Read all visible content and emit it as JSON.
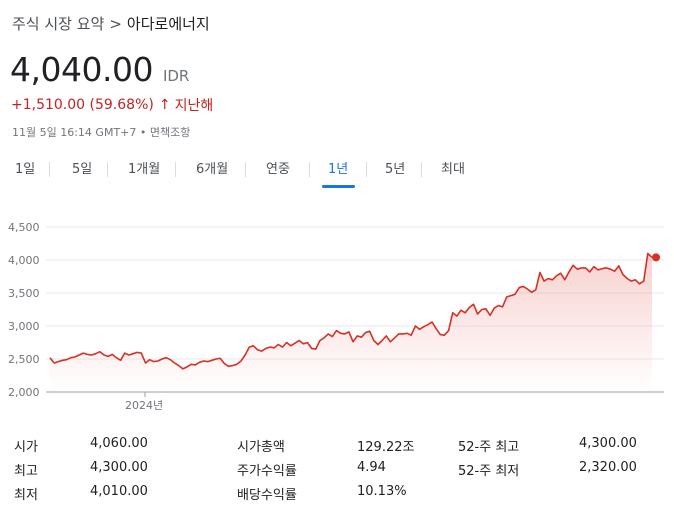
{
  "breadcrumb": {
    "parent": "주식 시장 요약",
    "separator": ">",
    "current": "아다로에너지"
  },
  "quote": {
    "price": "4,040.00",
    "currency": "IDR",
    "change": "+1,510.00 (59.68%)",
    "change_arrow": "↑",
    "period": "지난해",
    "timestamp": "11월 5일 16:14 GMT+7 • 면책조항",
    "change_color": "#c5221f"
  },
  "tabs": [
    {
      "label": "1일",
      "active": false
    },
    {
      "label": "5일",
      "active": false
    },
    {
      "label": "1개월",
      "active": false
    },
    {
      "label": "6개월",
      "active": false
    },
    {
      "label": "연중",
      "active": false
    },
    {
      "label": "1년",
      "active": true
    },
    {
      "label": "5년",
      "active": false
    },
    {
      "label": "최대",
      "active": false
    }
  ],
  "stats": {
    "open_label": "시가",
    "open_value": "4,060.00",
    "high_label": "최고",
    "high_value": "4,300.00",
    "low_label": "최저",
    "low_value": "4,010.00",
    "mktcap_label": "시가총액",
    "mktcap_value": "129.22조",
    "pe_label": "주가수익률",
    "pe_value": "4.94",
    "div_label": "배당수익률",
    "div_value": "10.13%",
    "high52_label": "52-주 최고",
    "high52_value": "4,300.00",
    "low52_label": "52-주 최저",
    "low52_value": "2,320.00"
  },
  "chart_data": {
    "type": "line",
    "ylim": [
      2000,
      4500
    ],
    "yticks": [
      "4,500",
      "4,000",
      "3,500",
      "3,000",
      "2,500",
      "2,000"
    ],
    "xlabel_tick": "2024년",
    "line_color": "#d93025",
    "grid": true,
    "series": [
      {
        "values": [
          2520,
          2440,
          2460,
          2480,
          2490,
          2520,
          2530,
          2560,
          2590,
          2570,
          2560,
          2580,
          2610,
          2560,
          2540,
          2570,
          2520,
          2480,
          2590,
          2560,
          2580,
          2600,
          2590,
          2440,
          2490,
          2460,
          2470,
          2500,
          2520,
          2490,
          2440,
          2400,
          2350,
          2380,
          2420,
          2410,
          2450,
          2470,
          2460,
          2480,
          2500,
          2510,
          2430,
          2390,
          2400,
          2420,
          2470,
          2560,
          2680,
          2700,
          2640,
          2620,
          2660,
          2680,
          2670,
          2720,
          2680,
          2750,
          2700,
          2740,
          2780,
          2730,
          2750,
          2660,
          2650,
          2780,
          2820,
          2880,
          2840,
          2930,
          2890,
          2880,
          2910,
          2760,
          2850,
          2830,
          2900,
          2920,
          2780,
          2720,
          2780,
          2850,
          2760,
          2820,
          2880,
          2880,
          2890,
          2860,
          3000,
          2950,
          2990,
          3020,
          3060,
          2960,
          2870,
          2860,
          2930,
          3200,
          3150,
          3240,
          3200,
          3280,
          3330,
          3180,
          3250,
          3260,
          3160,
          3270,
          3310,
          3290,
          3440,
          3460,
          3480,
          3580,
          3600,
          3560,
          3510,
          3550,
          3810,
          3680,
          3720,
          3700,
          3760,
          3800,
          3700,
          3820,
          3920,
          3860,
          3880,
          3880,
          3820,
          3900,
          3850,
          3870,
          3880,
          3860,
          3830,
          3910,
          3780,
          3720,
          3680,
          3700,
          3640,
          3680,
          4100,
          4040
        ]
      }
    ]
  }
}
